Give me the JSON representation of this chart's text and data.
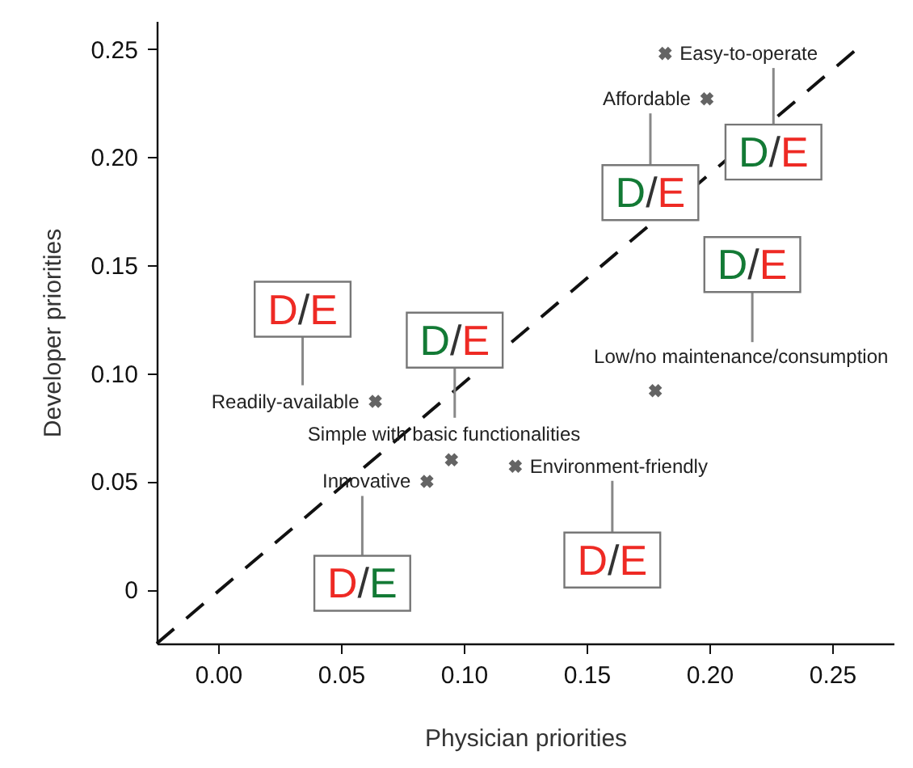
{
  "chart_data": {
    "type": "scatter",
    "xlabel": "Physician priorities",
    "ylabel": "Developer priorities",
    "xlim": [
      -0.025,
      0.275
    ],
    "ylim": [
      -0.025,
      0.263
    ],
    "xticks": [
      {
        "value": 0,
        "label": "0.00"
      },
      0.05,
      {
        "value": 0.1,
        "label": "0.10"
      },
      0.15,
      {
        "value": 0.2,
        "label": "0.20"
      },
      0.25
    ],
    "yticks": [
      {
        "value": 0,
        "label": "0"
      },
      0.05,
      {
        "value": 0.1,
        "label": "0.10"
      },
      0.15,
      {
        "value": 0.2,
        "label": "0.20"
      },
      0.25
    ],
    "series": [
      {
        "type": "line",
        "color": "#111111",
        "line_style": "dashed",
        "x": [
          -0.025,
          0.26
        ],
        "values": [
          -0.025,
          0.25
        ]
      },
      {
        "color": "#222222",
        "marker": "cross",
        "x": [
          0.182,
          0.199,
          0.178,
          0.064,
          0.095,
          0.085,
          0.121
        ],
        "values": [
          0.248,
          0.227,
          0.092,
          0.087,
          0.06,
          0.05,
          0.057
        ],
        "value_labels": [
          "Easy-to-operate",
          "Affordable",
          "Low/no maintenance/consumption",
          "Readily-available",
          "Simple with basic functionalities",
          "Innovative",
          "Environment-friendly"
        ]
      }
    ],
    "annotations": [
      "D/E",
      "D/E",
      "D/E",
      "D/E",
      "D/E",
      "D/E",
      "D/E"
    ]
  }
}
